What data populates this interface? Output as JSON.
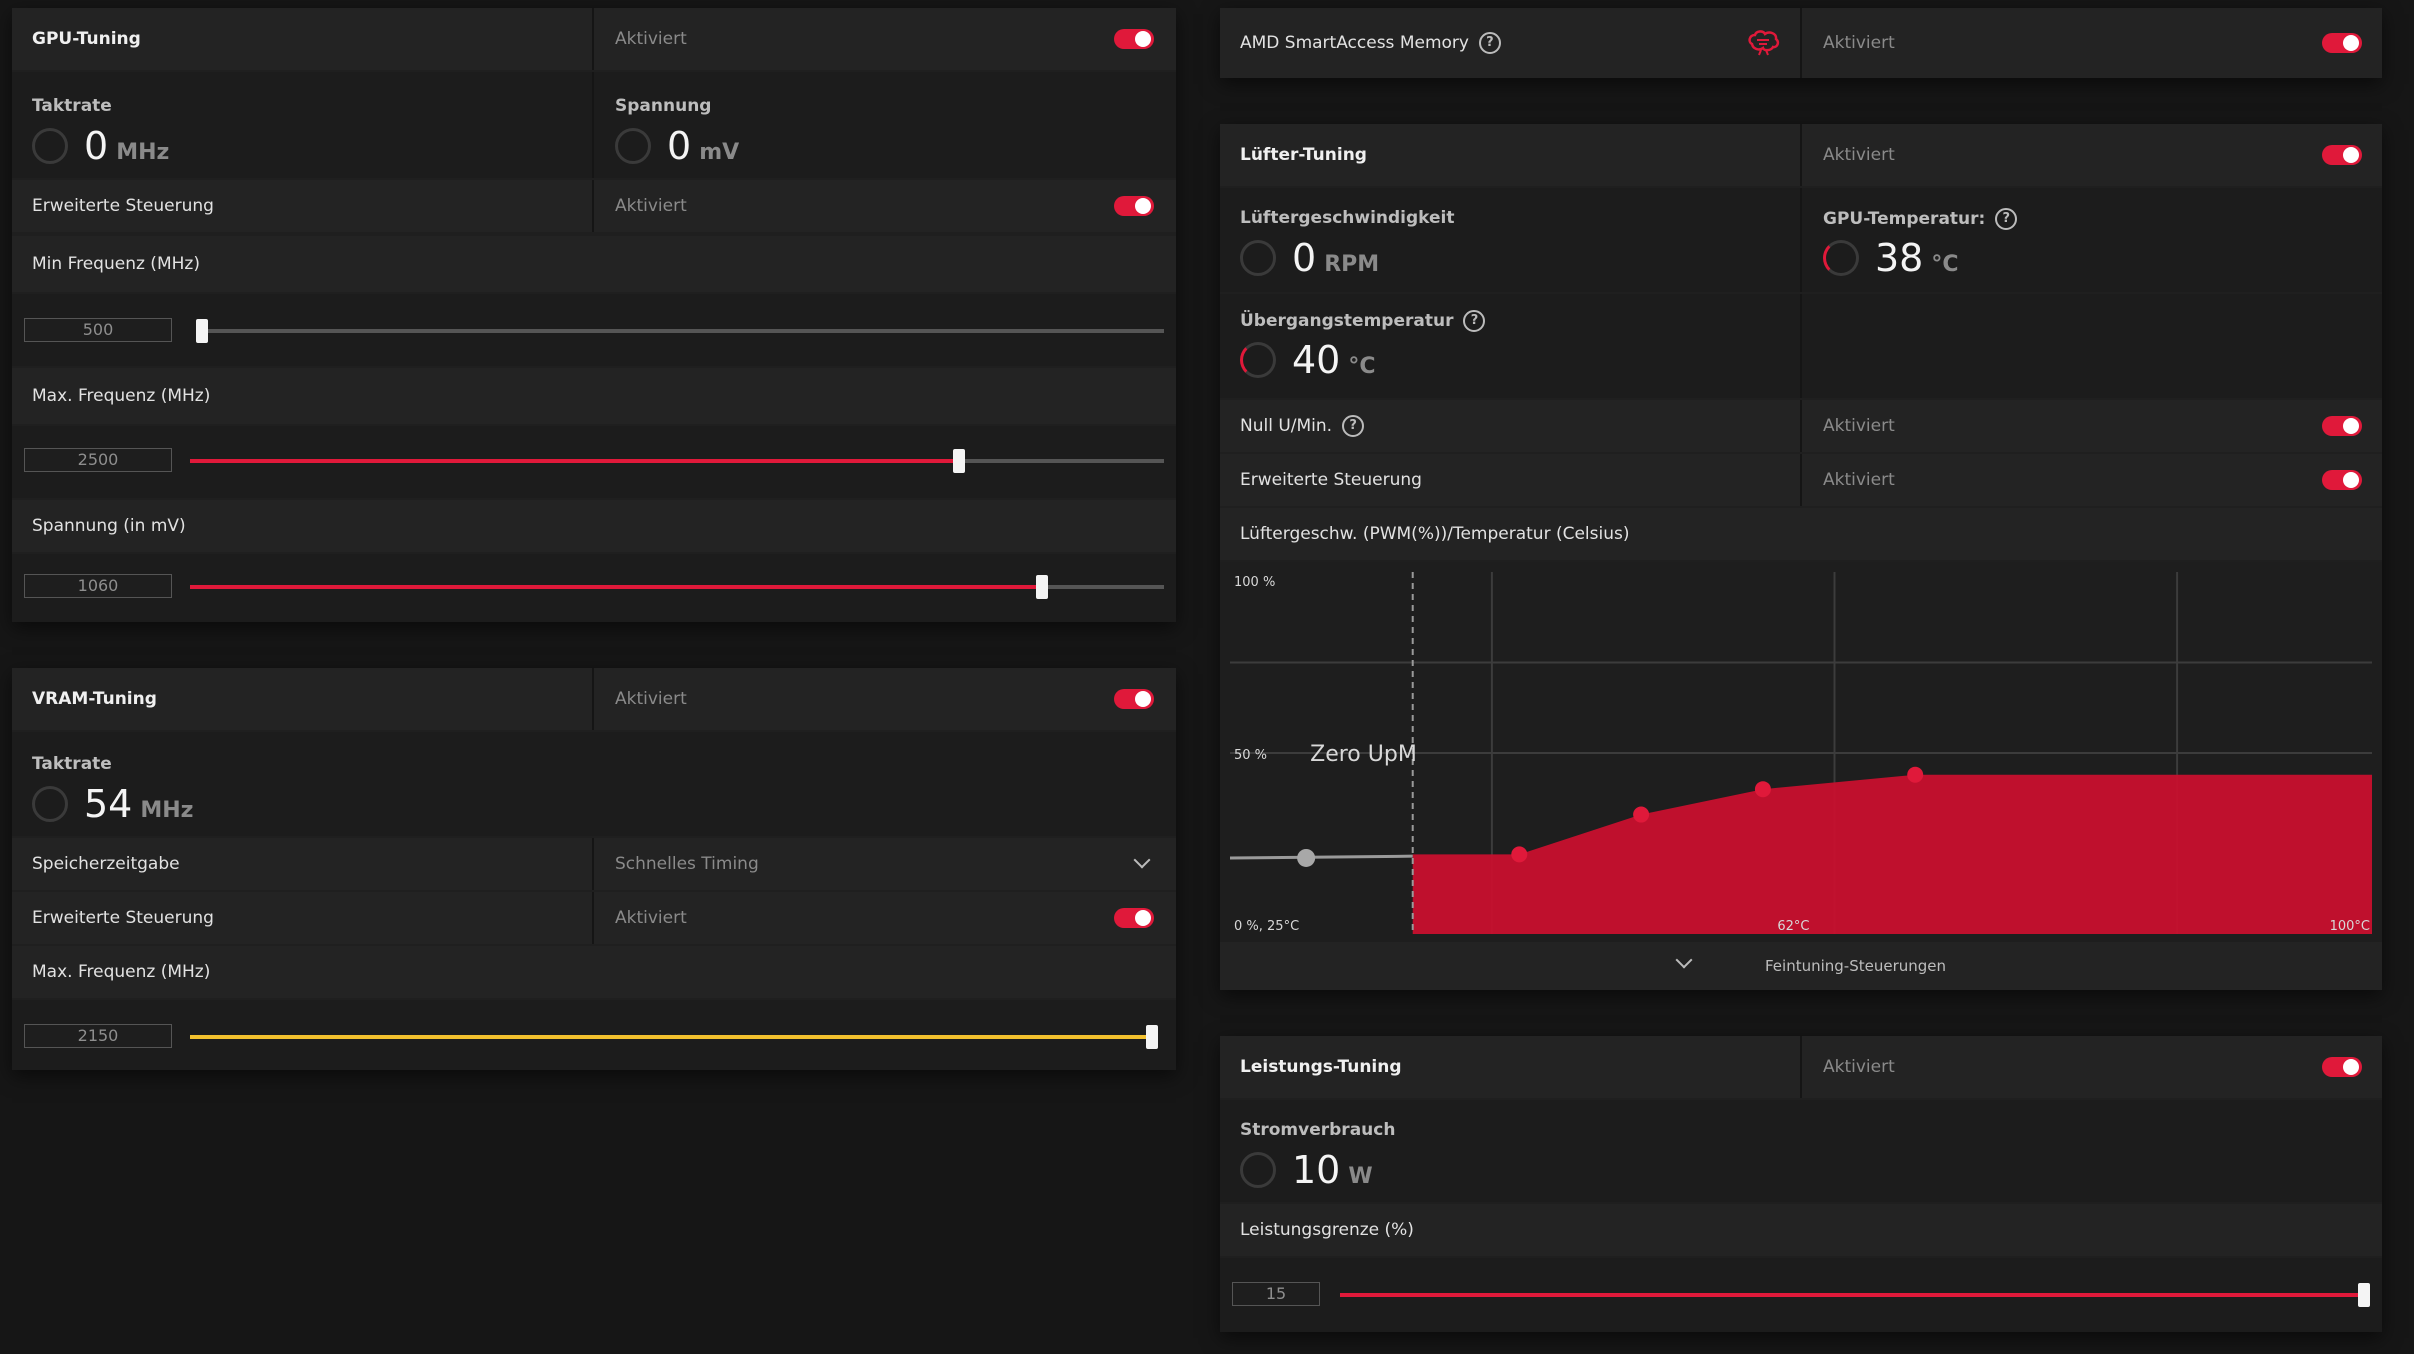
{
  "gpu_tuning": {
    "title": "GPU-Tuning",
    "status": "Aktiviert",
    "clock_label": "Taktrate",
    "clock_value": "0",
    "clock_unit": "MHz",
    "voltage_label": "Spannung",
    "voltage_value": "0",
    "voltage_unit": "mV",
    "advanced_label": "Erweiterte Steuerung",
    "advanced_status": "Aktiviert",
    "min_freq_label": "Min Frequenz (MHz)",
    "min_freq_value": "500",
    "min_freq_fraction": 0.0,
    "max_freq_label": "Max. Frequenz (MHz)",
    "max_freq_value": "2500",
    "max_freq_fraction": 0.79,
    "volt_label": "Spannung (in mV)",
    "volt_value": "1060",
    "volt_fraction": 0.875
  },
  "vram_tuning": {
    "title": "VRAM-Tuning",
    "status": "Aktiviert",
    "clock_label": "Taktrate",
    "clock_value": "54",
    "clock_unit": "MHz",
    "memory_timing_label": "Speicherzeitgabe",
    "memory_timing_value": "Schnelles Timing",
    "advanced_label": "Erweiterte Steuerung",
    "advanced_status": "Aktiviert",
    "max_freq_label": "Max. Frequenz (MHz)",
    "max_freq_value": "2150",
    "max_freq_fraction": 1.0
  },
  "smart_access": {
    "title": "AMD SmartAccess Memory",
    "status": "Aktiviert"
  },
  "fan_tuning": {
    "title": "Lüfter-Tuning",
    "status": "Aktiviert",
    "fan_speed_label": "Lüftergeschwindigkeit",
    "fan_speed_value": "0",
    "fan_speed_unit": "RPM",
    "gpu_temp_label": "GPU-Temperatur:",
    "gpu_temp_value": "38",
    "gpu_temp_unit": "°C",
    "junction_label": "Übergangstemperatur",
    "junction_value": "40",
    "junction_unit": "°C",
    "zero_rpm_label": "Null U/Min.",
    "zero_rpm_status": "Aktiviert",
    "advanced_label": "Erweiterte Steuerung",
    "advanced_status": "Aktiviert",
    "curve_label": "Lüftergeschw. (PWM(%))/Temperatur (Celsius)",
    "fine_tuning_label": "Feintuning-Steuerungen"
  },
  "chart_data": {
    "type": "area",
    "y_tick_labels": [
      "100 %",
      "50 %",
      "0 %, 25°C"
    ],
    "x_tick_labels": [
      "62°C",
      "100°C"
    ],
    "annotation": "Zero UpM",
    "xlim": [
      25,
      100
    ],
    "ylim": [
      0,
      100
    ],
    "zero_rpm_threshold": 37,
    "zero_rpm_handle": {
      "x": 30,
      "y": 21
    },
    "x": [
      37,
      44,
      52,
      60,
      70,
      100
    ],
    "y": [
      22,
      22,
      33,
      40,
      44,
      44
    ],
    "points": [
      {
        "x": 44,
        "y": 22
      },
      {
        "x": 52,
        "y": 33
      },
      {
        "x": 60,
        "y": 40
      },
      {
        "x": 70,
        "y": 44
      }
    ],
    "fill_color": "#c8102e",
    "grid": true
  },
  "power_tuning": {
    "title": "Leistungs-Tuning",
    "status": "Aktiviert",
    "power_label": "Stromverbrauch",
    "power_value": "10",
    "power_unit": "W",
    "limit_label": "Leistungsgrenze (%)",
    "limit_value": "15",
    "limit_fraction": 1.0
  },
  "colors": {
    "accent": "#e0193a",
    "vram_accent": "#f2c12e",
    "panel": "#1f1f1f"
  }
}
